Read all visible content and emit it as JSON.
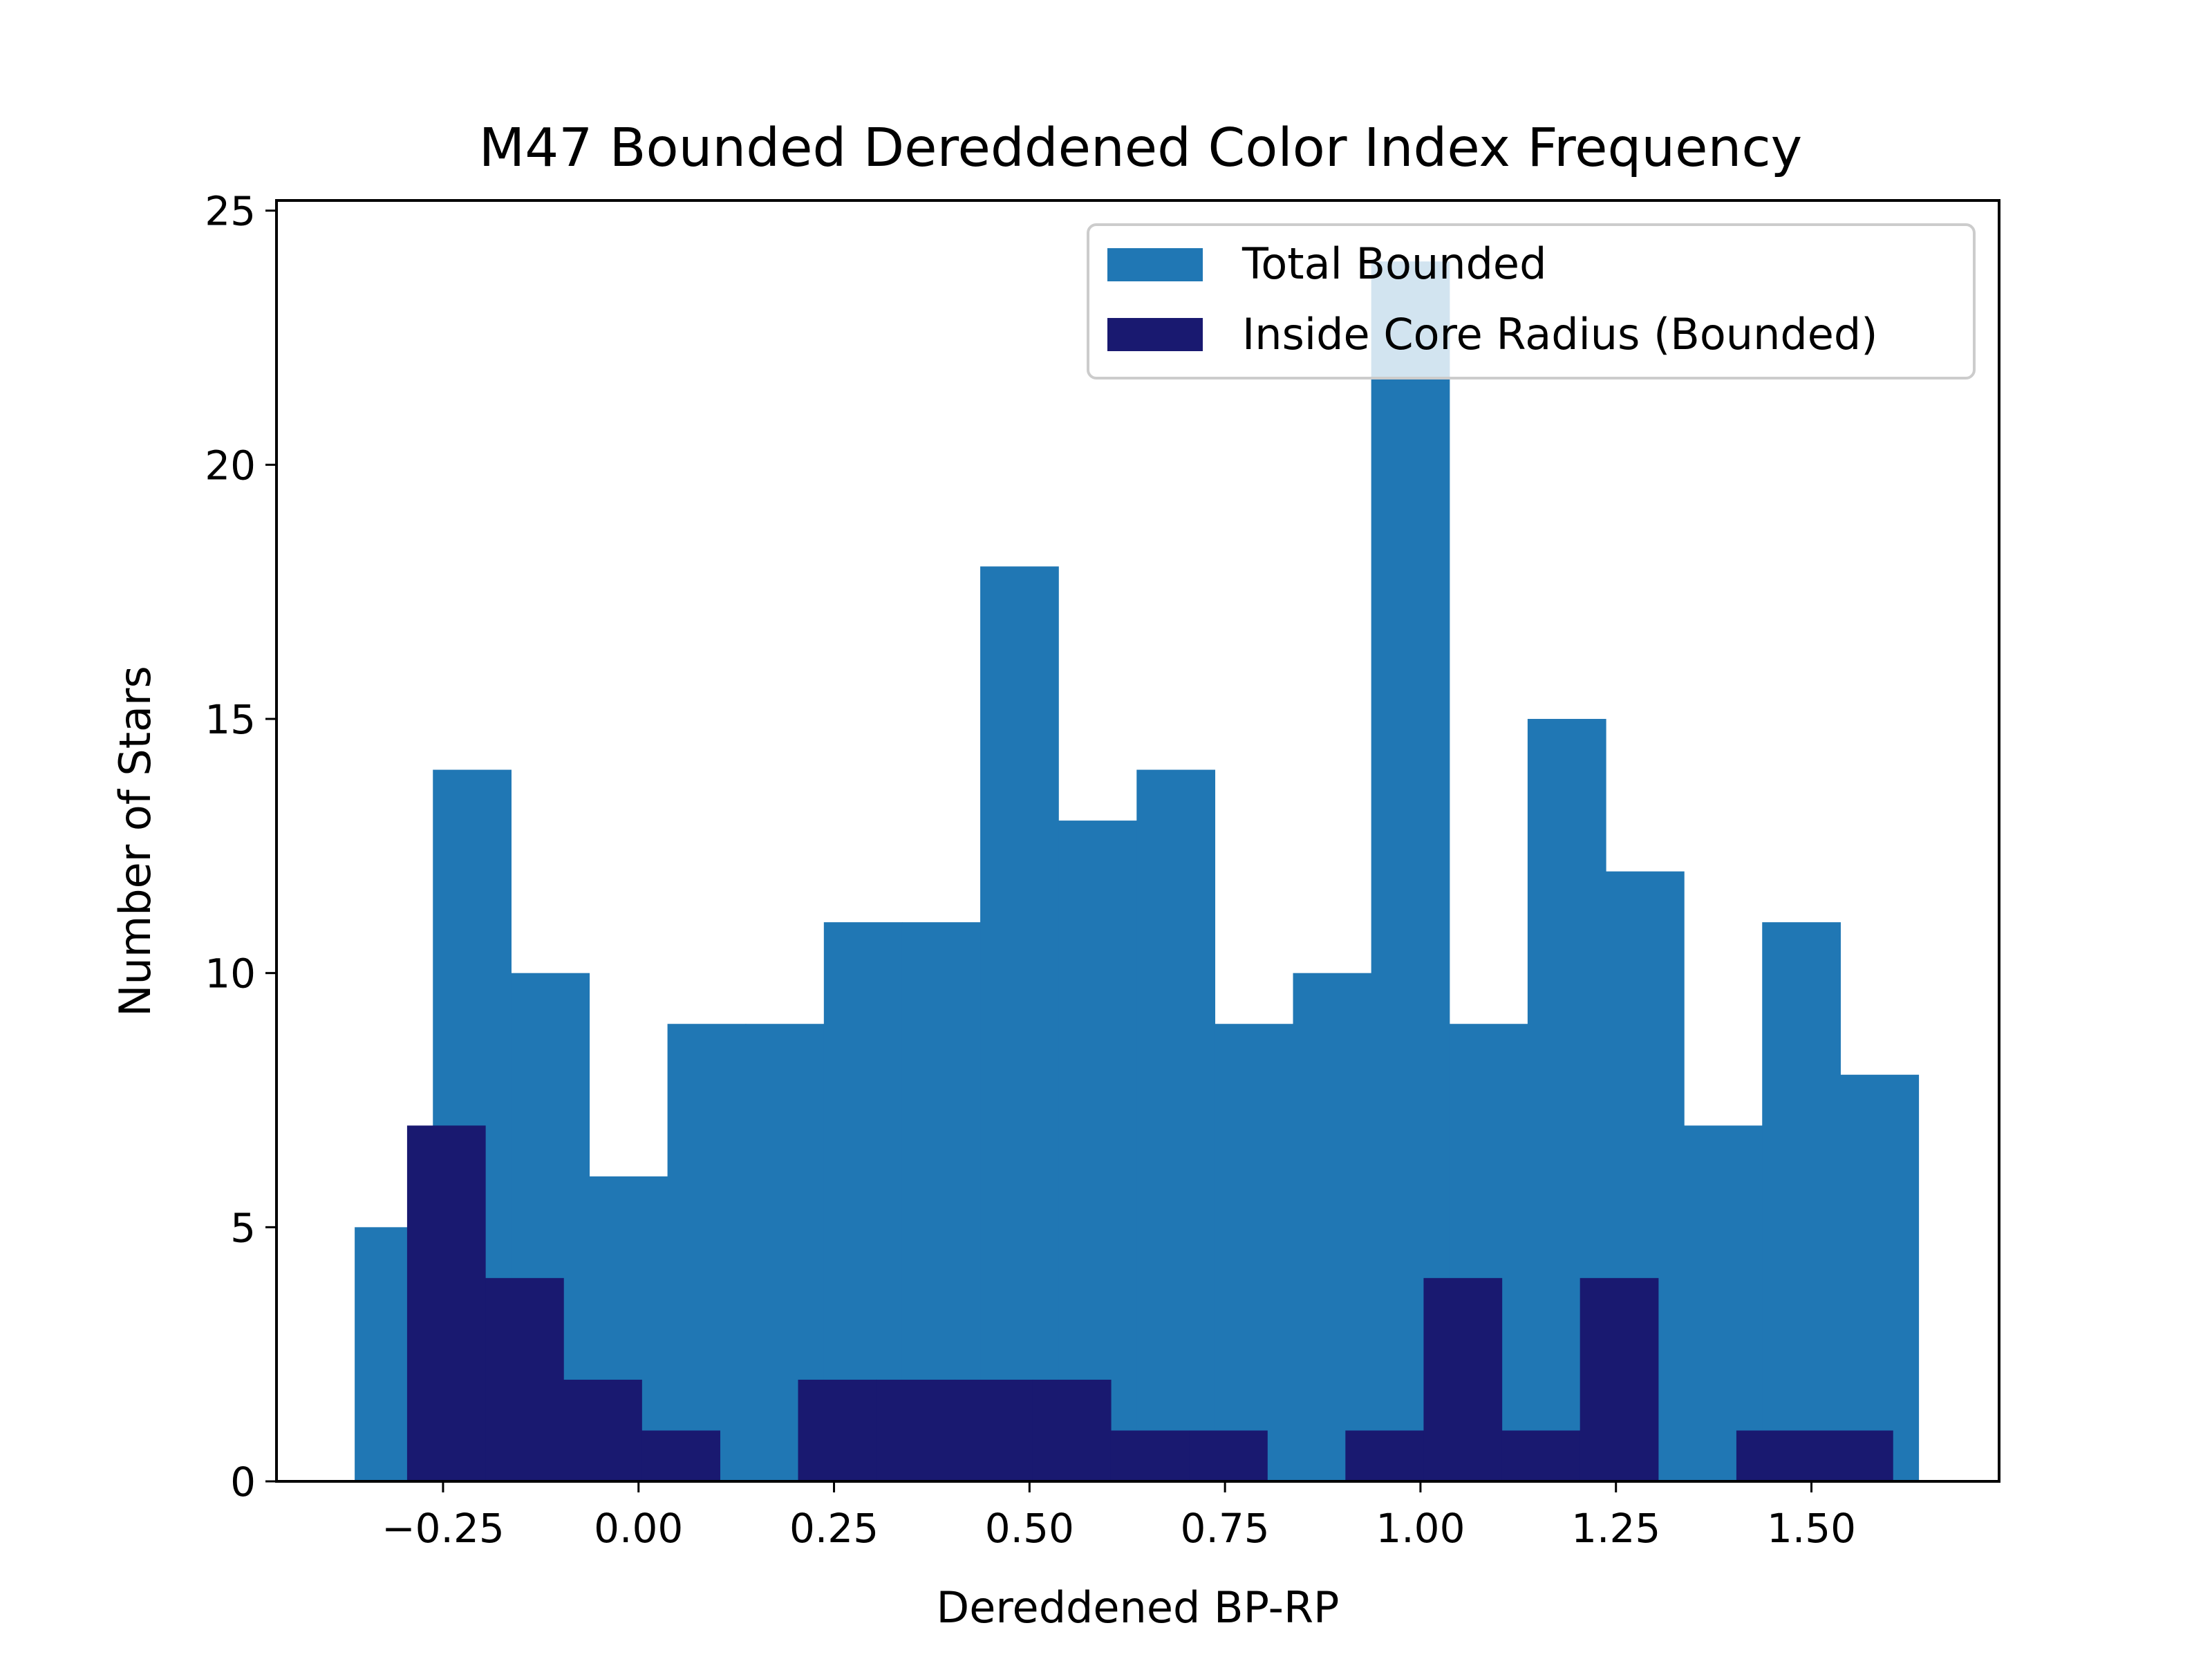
{
  "chart_data": {
    "type": "bar",
    "title": "M47 Bounded Dereddened Color Index Frequency",
    "xlabel": "Dereddened BP-RP",
    "ylabel": "Number of Stars",
    "xlim": [
      -0.463,
      1.74
    ],
    "ylim": [
      0,
      25.2
    ],
    "xticks": [
      {
        "value": -0.25,
        "label": "−0.25"
      },
      {
        "value": 0.0,
        "label": "0.00"
      },
      {
        "value": 0.25,
        "label": "0.25"
      },
      {
        "value": 0.5,
        "label": "0.50"
      },
      {
        "value": 0.75,
        "label": "0.75"
      },
      {
        "value": 1.0,
        "label": "1.00"
      },
      {
        "value": 1.25,
        "label": "1.25"
      },
      {
        "value": 1.5,
        "label": "1.50"
      }
    ],
    "yticks": [
      {
        "value": 0,
        "label": "0"
      },
      {
        "value": 5,
        "label": "5"
      },
      {
        "value": 10,
        "label": "10"
      },
      {
        "value": 15,
        "label": "15"
      },
      {
        "value": 20,
        "label": "20"
      },
      {
        "value": 25,
        "label": "25"
      }
    ],
    "grid": false,
    "legend_position": "top-right",
    "series": [
      {
        "name": "Total Bounded",
        "color": "#2077b4",
        "bin_edges": [
          -0.363,
          -0.263,
          -0.163,
          -0.063,
          0.037,
          0.137,
          0.237,
          0.337,
          0.437,
          0.537,
          0.637,
          0.737,
          0.837,
          0.937,
          1.037,
          1.137,
          1.237,
          1.337,
          1.437,
          1.537,
          1.637
        ],
        "counts": [
          5,
          14,
          10,
          6,
          9,
          9,
          11,
          11,
          18,
          13,
          14,
          9,
          10,
          24,
          9,
          15,
          12,
          7,
          11,
          8
        ]
      },
      {
        "name": "Inside Core Radius (Bounded)",
        "color": "#191970",
        "bin_edges": [
          -0.296,
          -0.196,
          -0.096,
          0.004,
          0.104,
          0.204,
          0.304,
          0.404,
          0.504,
          0.604,
          0.704,
          0.804,
          0.904,
          1.004,
          1.104,
          1.204,
          1.304,
          1.404,
          1.504,
          1.604
        ],
        "counts": [
          7,
          4,
          2,
          1,
          0,
          2,
          2,
          2,
          2,
          1,
          1,
          0,
          1,
          4,
          1,
          4,
          0,
          1,
          1
        ]
      }
    ]
  }
}
